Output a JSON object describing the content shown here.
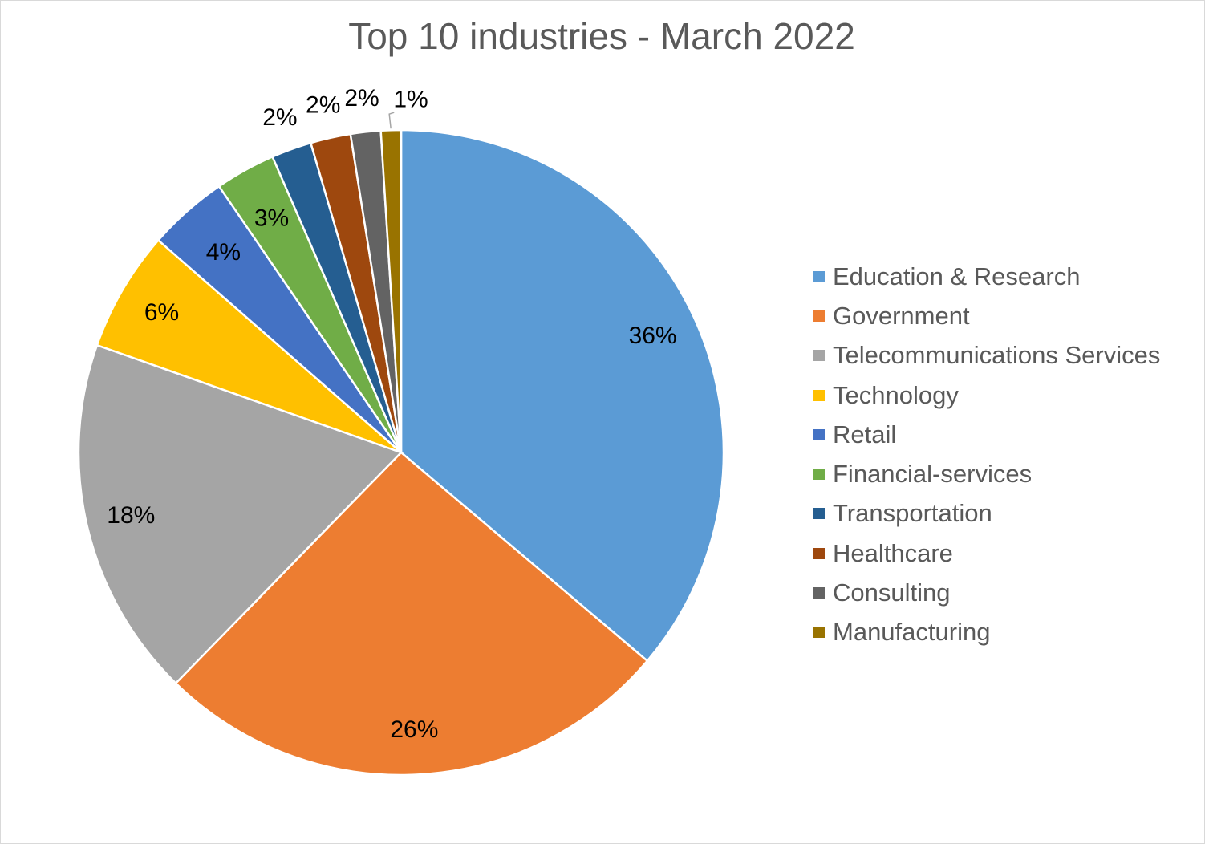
{
  "chart_data": {
    "type": "pie",
    "title": "Top 10 industries - March 2022",
    "legend_position": "right",
    "slices": [
      {
        "label": "Education & Research",
        "value": 36,
        "display": "36%",
        "color": "#5B9BD5"
      },
      {
        "label": "Government",
        "value": 26,
        "display": "26%",
        "color": "#ED7D31"
      },
      {
        "label": "Telecommunications Services",
        "value": 18,
        "display": "18%",
        "color": "#A5A5A5"
      },
      {
        "label": "Technology",
        "value": 6,
        "display": "6%",
        "color": "#FFC000"
      },
      {
        "label": "Retail",
        "value": 4,
        "display": "4%",
        "color": "#4472C4"
      },
      {
        "label": "Financial-services",
        "value": 3,
        "display": "3%",
        "color": "#70AD47"
      },
      {
        "label": "Transportation",
        "value": 2,
        "display": "2%",
        "color": "#255E91"
      },
      {
        "label": "Healthcare",
        "value": 2,
        "display": "2%",
        "color": "#9E480E"
      },
      {
        "label": "Consulting",
        "value": 1.5,
        "display": "2%",
        "color": "#636363"
      },
      {
        "label": "Manufacturing",
        "value": 1,
        "display": "1%",
        "color": "#997300"
      }
    ]
  }
}
